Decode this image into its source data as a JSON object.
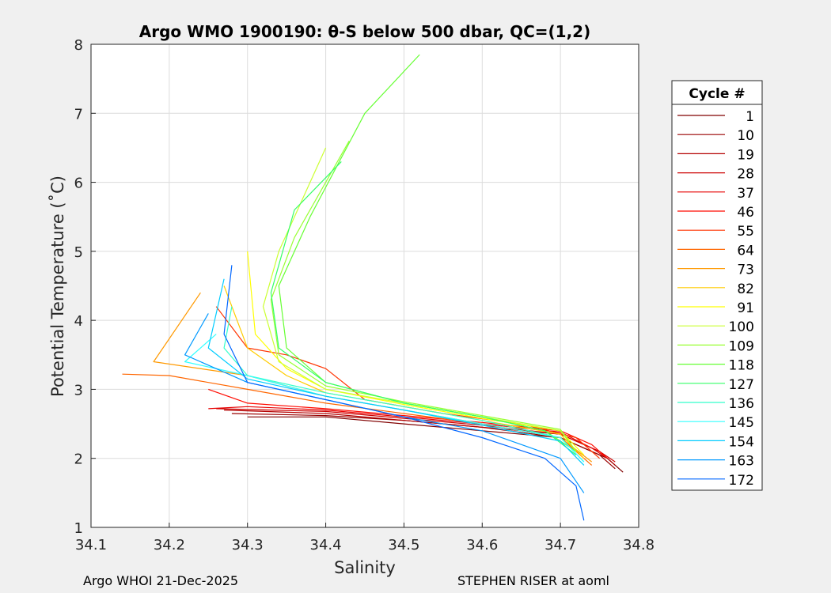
{
  "chart_data": {
    "type": "line",
    "title": "Argo WMO 1900190: θ-S below 500 dbar,  QC=(1,2)",
    "xlabel": "Salinity",
    "ylabel": "Potential Temperature (˚C)",
    "xlim": [
      34.1,
      34.8
    ],
    "ylim": [
      1,
      8
    ],
    "xticks": [
      "34.1",
      "34.2",
      "34.3",
      "34.4",
      "34.5",
      "34.6",
      "34.7",
      "34.8"
    ],
    "yticks": [
      "1",
      "2",
      "3",
      "4",
      "5",
      "6",
      "7",
      "8"
    ],
    "grid": true,
    "legend": {
      "title": "Cycle #",
      "placement": "outside-right",
      "entries": [
        {
          "label": "1",
          "color": "#800000"
        },
        {
          "label": "10",
          "color": "#990000"
        },
        {
          "label": "19",
          "color": "#b30000"
        },
        {
          "label": "28",
          "color": "#cc0000"
        },
        {
          "label": "37",
          "color": "#e60000"
        },
        {
          "label": "46",
          "color": "#ff0a00"
        },
        {
          "label": "55",
          "color": "#ff3300"
        },
        {
          "label": "64",
          "color": "#ff6600"
        },
        {
          "label": "73",
          "color": "#ff9900"
        },
        {
          "label": "82",
          "color": "#ffcc00"
        },
        {
          "label": "91",
          "color": "#ffff00"
        },
        {
          "label": "100",
          "color": "#ccff33"
        },
        {
          "label": "109",
          "color": "#99ff33"
        },
        {
          "label": "118",
          "color": "#66ff33"
        },
        {
          "label": "127",
          "color": "#33ff66"
        },
        {
          "label": "136",
          "color": "#33ffcc"
        },
        {
          "label": "145",
          "color": "#33ffff"
        },
        {
          "label": "154",
          "color": "#00ccff"
        },
        {
          "label": "163",
          "color": "#0099ff"
        },
        {
          "label": "172",
          "color": "#0066ff"
        }
      ]
    },
    "series": [
      {
        "name": "1",
        "color": "#800000",
        "x": [
          34.78,
          34.76,
          34.7,
          34.6,
          34.5,
          34.4,
          34.3
        ],
        "y": [
          1.8,
          2.0,
          2.3,
          2.4,
          2.5,
          2.6,
          2.6
        ]
      },
      {
        "name": "10",
        "color": "#990000",
        "x": [
          34.77,
          34.75,
          34.7,
          34.6,
          34.5,
          34.4,
          34.28
        ],
        "y": [
          1.85,
          2.05,
          2.3,
          2.45,
          2.55,
          2.62,
          2.65
        ]
      },
      {
        "name": "19",
        "color": "#b30000",
        "x": [
          34.77,
          34.75,
          34.7,
          34.6,
          34.5,
          34.4,
          34.27
        ],
        "y": [
          1.9,
          2.1,
          2.35,
          2.45,
          2.55,
          2.65,
          2.7
        ]
      },
      {
        "name": "28",
        "color": "#cc0000",
        "x": [
          34.77,
          34.75,
          34.7,
          34.6,
          34.5,
          34.4,
          34.26
        ],
        "y": [
          1.95,
          2.1,
          2.35,
          2.48,
          2.58,
          2.68,
          2.72
        ]
      },
      {
        "name": "37",
        "color": "#e60000",
        "x": [
          34.76,
          34.74,
          34.7,
          34.6,
          34.5,
          34.4,
          34.3,
          34.25
        ],
        "y": [
          2.0,
          2.15,
          2.38,
          2.5,
          2.6,
          2.7,
          2.75,
          2.72
        ]
      },
      {
        "name": "46",
        "color": "#ff0a00",
        "x": [
          34.76,
          34.74,
          34.7,
          34.6,
          34.5,
          34.4,
          34.3,
          34.25
        ],
        "y": [
          2.0,
          2.2,
          2.4,
          2.52,
          2.62,
          2.72,
          2.8,
          3.0
        ]
      },
      {
        "name": "55",
        "color": "#ff3300",
        "x": [
          34.75,
          34.72,
          34.65,
          34.55,
          34.45,
          34.4,
          34.35,
          34.3,
          34.26
        ],
        "y": [
          2.0,
          2.3,
          2.5,
          2.65,
          2.85,
          3.3,
          3.5,
          3.6,
          4.2
        ]
      },
      {
        "name": "64",
        "color": "#ff6600",
        "x": [
          34.74,
          34.7,
          34.6,
          34.5,
          34.4,
          34.3,
          34.2,
          34.14
        ],
        "y": [
          1.9,
          2.3,
          2.5,
          2.65,
          2.8,
          3.0,
          3.2,
          3.22
        ]
      },
      {
        "name": "73",
        "color": "#ff9900",
        "x": [
          34.74,
          34.7,
          34.6,
          34.5,
          34.4,
          34.3,
          34.18,
          34.24
        ],
        "y": [
          1.95,
          2.3,
          2.5,
          2.7,
          2.9,
          3.2,
          3.4,
          4.4
        ]
      },
      {
        "name": "82",
        "color": "#ffcc00",
        "x": [
          34.73,
          34.7,
          34.6,
          34.5,
          34.4,
          34.35,
          34.3,
          34.27
        ],
        "y": [
          2.0,
          2.35,
          2.55,
          2.75,
          2.95,
          3.2,
          3.6,
          4.5
        ]
      },
      {
        "name": "91",
        "color": "#ffff00",
        "x": [
          34.73,
          34.7,
          34.6,
          34.5,
          34.4,
          34.35,
          34.31,
          34.3
        ],
        "y": [
          2.05,
          2.4,
          2.58,
          2.78,
          3.0,
          3.3,
          3.8,
          5.0
        ]
      },
      {
        "name": "100",
        "color": "#ccff33",
        "x": [
          34.72,
          34.7,
          34.6,
          34.5,
          34.4,
          34.34,
          34.32,
          34.34,
          34.4
        ],
        "y": [
          2.1,
          2.4,
          2.6,
          2.8,
          3.0,
          3.4,
          4.2,
          5.0,
          6.5
        ]
      },
      {
        "name": "109",
        "color": "#99ff33",
        "x": [
          34.72,
          34.7,
          34.6,
          34.5,
          34.4,
          34.34,
          34.33,
          34.36,
          34.43
        ],
        "y": [
          2.1,
          2.42,
          2.62,
          2.82,
          3.05,
          3.5,
          4.3,
          5.2,
          6.6
        ]
      },
      {
        "name": "118",
        "color": "#66ff33",
        "x": [
          34.72,
          34.68,
          34.6,
          34.5,
          34.4,
          34.35,
          34.34,
          34.38,
          34.45,
          34.52
        ],
        "y": [
          2.1,
          2.4,
          2.6,
          2.8,
          3.1,
          3.6,
          4.5,
          5.5,
          7.0,
          7.85
        ]
      },
      {
        "name": "127",
        "color": "#33ff66",
        "x": [
          34.72,
          34.68,
          34.6,
          34.5,
          34.4,
          34.34,
          34.33,
          34.36,
          34.42
        ],
        "y": [
          2.05,
          2.4,
          2.6,
          2.8,
          3.1,
          3.6,
          4.4,
          5.6,
          6.3
        ]
      },
      {
        "name": "136",
        "color": "#33ffcc",
        "x": [
          34.73,
          34.7,
          34.6,
          34.5,
          34.4,
          34.3,
          34.27,
          34.28
        ],
        "y": [
          1.95,
          2.3,
          2.55,
          2.75,
          2.95,
          3.2,
          3.6,
          4.2
        ]
      },
      {
        "name": "145",
        "color": "#33ffff",
        "x": [
          34.73,
          34.7,
          34.6,
          34.5,
          34.4,
          34.3,
          34.22,
          34.26
        ],
        "y": [
          1.95,
          2.3,
          2.5,
          2.7,
          2.9,
          3.2,
          3.4,
          3.8
        ]
      },
      {
        "name": "154",
        "color": "#00ccff",
        "x": [
          34.73,
          34.7,
          34.6,
          34.5,
          34.4,
          34.3,
          34.25,
          34.27
        ],
        "y": [
          1.9,
          2.25,
          2.48,
          2.7,
          2.9,
          3.15,
          3.6,
          4.6
        ]
      },
      {
        "name": "163",
        "color": "#0099ff",
        "x": [
          34.73,
          34.7,
          34.6,
          34.5,
          34.4,
          34.3,
          34.22,
          34.25
        ],
        "y": [
          1.5,
          2.0,
          2.4,
          2.6,
          2.85,
          3.1,
          3.5,
          4.1
        ]
      },
      {
        "name": "172",
        "color": "#0066ff",
        "x": [
          34.73,
          34.72,
          34.68,
          34.6,
          34.5,
          34.4,
          34.3,
          34.27,
          34.28
        ],
        "y": [
          1.1,
          1.6,
          2.0,
          2.3,
          2.6,
          2.85,
          3.1,
          3.8,
          4.8
        ]
      }
    ]
  },
  "footer": {
    "left": "Argo WHOI 21-Dec-2025",
    "right": "STEPHEN RISER at aoml"
  }
}
